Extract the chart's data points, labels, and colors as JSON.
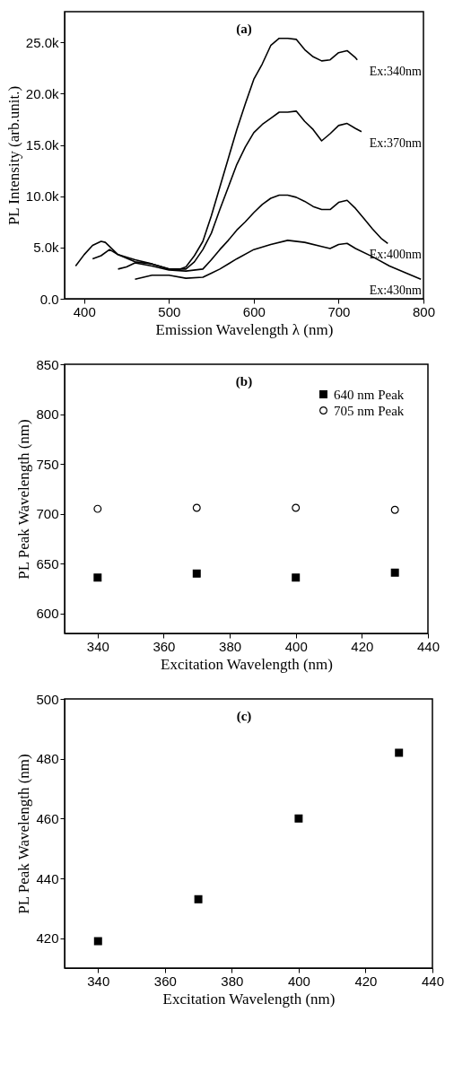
{
  "chart_data": [
    {
      "type": "line",
      "xlabel": "Emission Wavelength λ (nm)",
      "ylabel": "PL Intensity (arb.unit.)",
      "xlim": [
        377,
        800
      ],
      "xticks": [
        400,
        500,
        600,
        700,
        800
      ],
      "ylim": [
        0,
        28000
      ],
      "yticks": [
        {
          "value": 0,
          "label": "0.0"
        },
        {
          "value": 5000,
          "label": "5.0k"
        },
        {
          "value": 10000,
          "label": "10.0k"
        },
        {
          "value": 15000,
          "label": "15.0k"
        },
        {
          "value": 20000,
          "label": "20.0k"
        },
        {
          "value": 25000,
          "label": "25.0k"
        }
      ],
      "grid": false,
      "marker": "none",
      "line_style": "solid",
      "series": [
        {
          "name": "Ex:340nm",
          "color": "#000000",
          "x": [
            390,
            400,
            410,
            420,
            425,
            440,
            460,
            480,
            500,
            510,
            520,
            530,
            540,
            550,
            560,
            570,
            580,
            590,
            600,
            610,
            620,
            630,
            640,
            650,
            660,
            670,
            680,
            690,
            700,
            710,
            720,
            722
          ],
          "values": [
            3200,
            4300,
            5200,
            5600,
            5500,
            4300,
            3600,
            3400,
            2900,
            2800,
            3100,
            4200,
            5600,
            8100,
            10900,
            13700,
            16500,
            19000,
            21400,
            22900,
            24700,
            25400,
            25400,
            25300,
            24300,
            23600,
            23200,
            23300,
            24000,
            24200,
            23500,
            23300
          ]
        },
        {
          "name": "Ex:370nm",
          "color": "#000000",
          "x": [
            410,
            420,
            430,
            440,
            460,
            480,
            500,
            520,
            530,
            540,
            550,
            560,
            570,
            580,
            590,
            600,
            610,
            620,
            630,
            640,
            650,
            660,
            670,
            680,
            690,
            700,
            710,
            720,
            727
          ],
          "values": [
            3900,
            4200,
            4800,
            4300,
            3800,
            3400,
            2900,
            2900,
            3600,
            4800,
            6400,
            8700,
            10900,
            13100,
            14800,
            16200,
            17000,
            17600,
            18200,
            18200,
            18300,
            17300,
            16500,
            15400,
            16100,
            16900,
            17100,
            16600,
            16300
          ]
        },
        {
          "name": "Ex:400nm",
          "color": "#000000",
          "x": [
            440,
            450,
            460,
            480,
            500,
            520,
            540,
            550,
            560,
            570,
            580,
            590,
            600,
            610,
            620,
            630,
            640,
            650,
            660,
            670,
            680,
            690,
            700,
            710,
            720,
            730,
            740,
            750,
            758
          ],
          "values": [
            2900,
            3100,
            3500,
            3200,
            2800,
            2700,
            2900,
            3800,
            4800,
            5700,
            6700,
            7500,
            8400,
            9200,
            9800,
            10100,
            10100,
            9900,
            9500,
            9000,
            8700,
            8700,
            9400,
            9600,
            8800,
            7800,
            6800,
            5900,
            5400
          ]
        },
        {
          "name": "Ex:430nm",
          "color": "#000000",
          "x": [
            460,
            480,
            500,
            520,
            540,
            550,
            560,
            580,
            600,
            620,
            640,
            660,
            680,
            690,
            700,
            710,
            720,
            740,
            760,
            780,
            797
          ],
          "values": [
            1900,
            2300,
            2300,
            2000,
            2100,
            2500,
            2900,
            3900,
            4800,
            5300,
            5700,
            5500,
            5100,
            4900,
            5300,
            5400,
            4900,
            4100,
            3200,
            2500,
            1900
          ]
        }
      ],
      "annotations": [
        "(a)"
      ]
    },
    {
      "type": "scatter",
      "xlabel": "Excitation Wavelength (nm)",
      "ylabel": "PL Peak Wavelength (nm)",
      "xlim": [
        330,
        440
      ],
      "xticks": [
        340,
        360,
        380,
        400,
        420,
        440
      ],
      "ylim": [
        580,
        850
      ],
      "yticks": [
        600,
        650,
        700,
        750,
        800,
        850
      ],
      "grid": false,
      "legend": "top right",
      "x": [
        340,
        370,
        400,
        430
      ],
      "series": [
        {
          "name": "640 nm Peak",
          "color": "#000000",
          "marker": "square",
          "values": [
            636,
            640,
            636,
            641
          ]
        },
        {
          "name": "705 nm Peak",
          "color": "#000000",
          "marker": "circle",
          "values": [
            705,
            706,
            706,
            704
          ]
        }
      ],
      "annotations": [
        "(b)"
      ]
    },
    {
      "type": "scatter",
      "xlabel": "Excitation Wavelength (nm)",
      "ylabel": "PL Peak Wavelength (nm)",
      "xlim": [
        330,
        440
      ],
      "xticks": [
        340,
        360,
        380,
        400,
        420,
        440
      ],
      "ylim": [
        410,
        500
      ],
      "yticks": [
        420,
        440,
        460,
        480,
        500
      ],
      "grid": false,
      "marker": "square",
      "color": "#000000",
      "x": [
        340,
        370,
        400,
        430
      ],
      "values": [
        419,
        433,
        460,
        482
      ],
      "annotations": [
        "(c)"
      ]
    }
  ]
}
